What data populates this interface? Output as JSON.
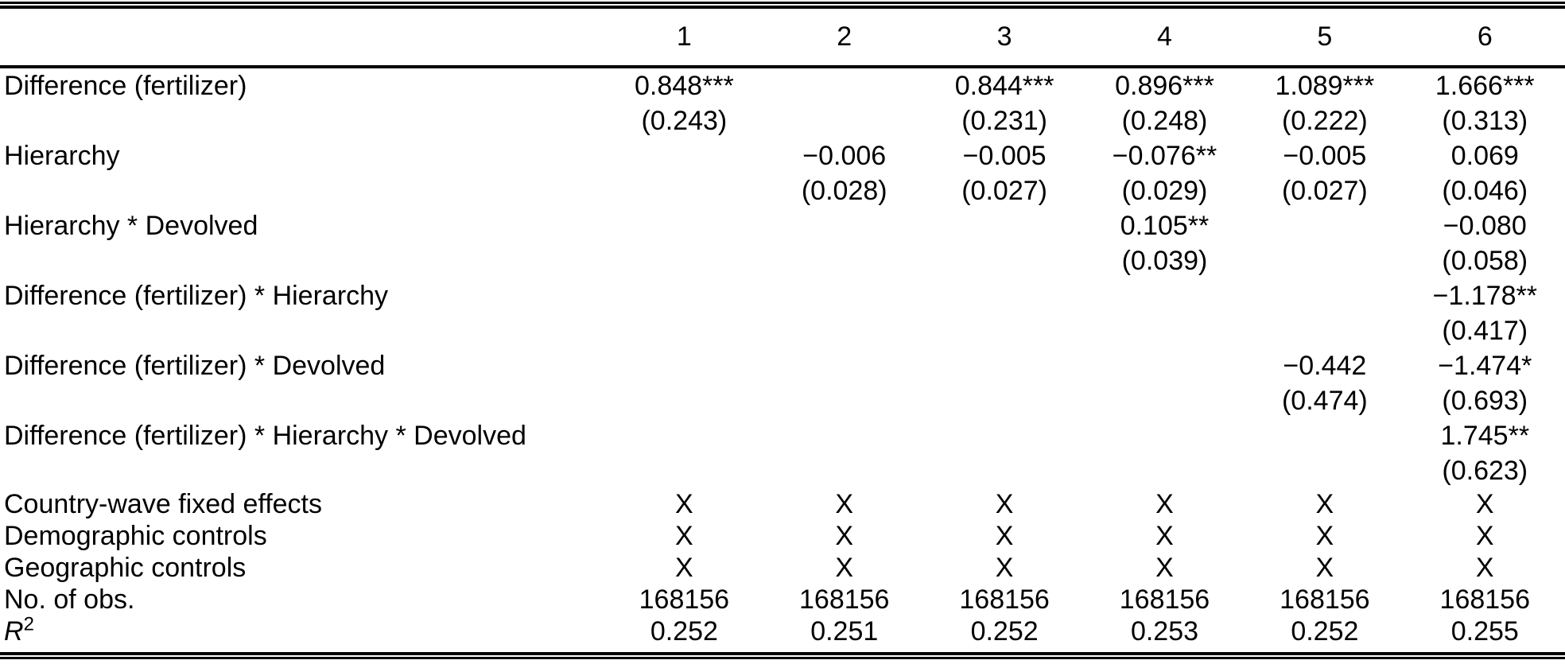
{
  "page": {
    "background_color": "#ffffff",
    "text_color": "#000000"
  },
  "table": {
    "column_headers": [
      "1",
      "2",
      "3",
      "4",
      "5",
      "6"
    ],
    "coefficient_rows": [
      {
        "label": "Difference (fertilizer)",
        "estimates": [
          "0.848***",
          "",
          "0.844***",
          "0.896***",
          "1.089***",
          "1.666***"
        ],
        "std_errors": [
          "(0.243)",
          "",
          "(0.231)",
          "(0.248)",
          "(0.222)",
          "(0.313)"
        ]
      },
      {
        "label": "Hierarchy",
        "estimates": [
          "",
          "−0.006",
          "−0.005",
          "−0.076**",
          "−0.005",
          "0.069"
        ],
        "std_errors": [
          "",
          "(0.028)",
          "(0.027)",
          "(0.029)",
          "(0.027)",
          "(0.046)"
        ]
      },
      {
        "label": "Hierarchy * Devolved",
        "estimates": [
          "",
          "",
          "",
          "0.105**",
          "",
          "−0.080"
        ],
        "std_errors": [
          "",
          "",
          "",
          "(0.039)",
          "",
          "(0.058)"
        ]
      },
      {
        "label": "Difference (fertilizer) * Hierarchy",
        "estimates": [
          "",
          "",
          "",
          "",
          "",
          "−1.178**"
        ],
        "std_errors": [
          "",
          "",
          "",
          "",
          "",
          "(0.417)"
        ]
      },
      {
        "label": "Difference (fertilizer) * Devolved",
        "estimates": [
          "",
          "",
          "",
          "",
          "−0.442",
          "−1.474*"
        ],
        "std_errors": [
          "",
          "",
          "",
          "",
          "(0.474)",
          "(0.693)"
        ]
      },
      {
        "label": "Difference (fertilizer) * Hierarchy * Devolved",
        "estimates": [
          "",
          "",
          "",
          "",
          "",
          "1.745**"
        ],
        "std_errors": [
          "",
          "",
          "",
          "",
          "",
          "(0.623)"
        ]
      }
    ],
    "summary_rows": [
      {
        "label": "Country-wave fixed effects",
        "values": [
          "X",
          "X",
          "X",
          "X",
          "X",
          "X"
        ]
      },
      {
        "label": "Demographic controls",
        "values": [
          "X",
          "X",
          "X",
          "X",
          "X",
          "X"
        ]
      },
      {
        "label": "Geographic controls",
        "values": [
          "X",
          "X",
          "X",
          "X",
          "X",
          "X"
        ]
      },
      {
        "label": "No. of obs.",
        "values": [
          "168156",
          "168156",
          "168156",
          "168156",
          "168156",
          "168156"
        ]
      },
      {
        "label": "R",
        "label_superscript": "2",
        "label_italic": true,
        "values": [
          "0.252",
          "0.251",
          "0.252",
          "0.253",
          "0.252",
          "0.255"
        ]
      }
    ]
  }
}
